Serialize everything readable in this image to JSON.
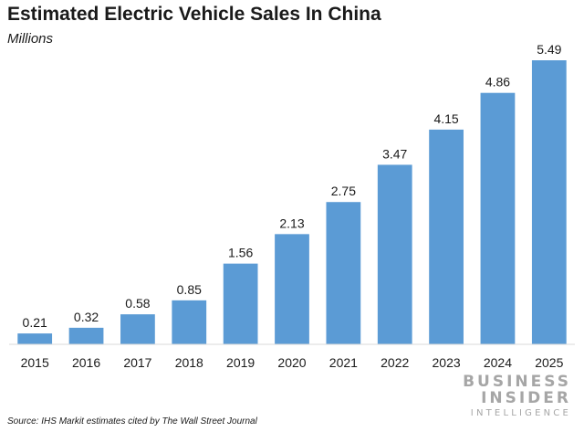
{
  "chart_data": {
    "type": "bar",
    "title": "Estimated Electric Vehicle Sales In China",
    "subtitle": "Millions",
    "categories": [
      "2015",
      "2016",
      "2017",
      "2018",
      "2019",
      "2020",
      "2021",
      "2022",
      "2023",
      "2024",
      "2025"
    ],
    "values": [
      0.21,
      0.32,
      0.58,
      0.85,
      1.56,
      2.13,
      2.75,
      3.47,
      4.15,
      4.86,
      5.49
    ],
    "value_labels": [
      "0.21",
      "0.32",
      "0.58",
      "0.85",
      "1.56",
      "2.13",
      "2.75",
      "3.47",
      "4.15",
      "4.86",
      "5.49"
    ],
    "xlabel": "",
    "ylabel": "",
    "ylim": [
      0,
      5.49
    ],
    "grid": false,
    "legend": "none",
    "bar_color": "#5b9bd5"
  },
  "footer": {
    "source": "Source: IHS Markit estimates cited by The Wall Street Journal"
  },
  "logo": {
    "line1": "BUSINESS",
    "line2": "INSIDER",
    "line3": "INTELLIGENCE"
  }
}
